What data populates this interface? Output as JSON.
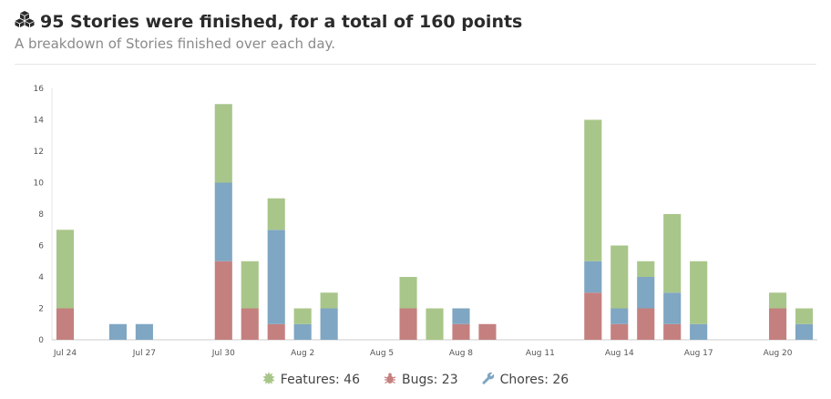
{
  "header": {
    "title": "95 Stories were finished, for a total of 160 points",
    "subtitle": "A breakdown of Stories finished over each day.",
    "icon": "boxes-icon"
  },
  "legend": {
    "features": "Features: 46",
    "bugs": "Bugs: 23",
    "chores": "Chores: 26",
    "features_icon": "feature-star-icon",
    "bugs_icon": "bug-icon",
    "chores_icon": "wrench-icon"
  },
  "colors": {
    "features": "#a9c68a",
    "bugs": "#c4807f",
    "chores": "#7fa6c2"
  },
  "chart_data": {
    "type": "bar",
    "stacked": true,
    "ylim": [
      0,
      16
    ],
    "yticks": [
      0,
      2,
      4,
      6,
      8,
      10,
      12,
      14,
      16
    ],
    "x": [
      "Jul 24",
      "Jul 25",
      "Jul 26",
      "Jul 27",
      "Jul 28",
      "Jul 29",
      "Jul 30",
      "Jul 31",
      "Aug 1",
      "Aug 2",
      "Aug 3",
      "Aug 4",
      "Aug 5",
      "Aug 6",
      "Aug 7",
      "Aug 8",
      "Aug 9",
      "Aug 10",
      "Aug 11",
      "Aug 12",
      "Aug 13",
      "Aug 14",
      "Aug 15",
      "Aug 16",
      "Aug 17",
      "Aug 18",
      "Aug 19",
      "Aug 20",
      "Aug 21"
    ],
    "xtick_labels": [
      {
        "index": 0,
        "label": "Jul 24"
      },
      {
        "index": 3,
        "label": "Jul 27"
      },
      {
        "index": 6,
        "label": "Jul 30"
      },
      {
        "index": 9,
        "label": "Aug 2"
      },
      {
        "index": 12,
        "label": "Aug 5"
      },
      {
        "index": 15,
        "label": "Aug 8"
      },
      {
        "index": 18,
        "label": "Aug 11"
      },
      {
        "index": 21,
        "label": "Aug 14"
      },
      {
        "index": 24,
        "label": "Aug 17"
      },
      {
        "index": 27,
        "label": "Aug 20"
      }
    ],
    "series": [
      {
        "name": "Bugs",
        "color": "#c4807f",
        "values": [
          2,
          0,
          0,
          0,
          0,
          0,
          5,
          2,
          1,
          0,
          0,
          0,
          0,
          2,
          0,
          1,
          1,
          0,
          0,
          0,
          3,
          1,
          2,
          1,
          0,
          0,
          0,
          2,
          0
        ]
      },
      {
        "name": "Chores",
        "color": "#7fa6c2",
        "values": [
          0,
          0,
          1,
          1,
          0,
          0,
          5,
          0,
          6,
          1,
          2,
          0,
          0,
          0,
          0,
          1,
          0,
          0,
          0,
          0,
          2,
          1,
          2,
          2,
          1,
          0,
          0,
          0,
          1
        ]
      },
      {
        "name": "Features",
        "color": "#a9c68a",
        "values": [
          5,
          0,
          0,
          0,
          0,
          0,
          5,
          3,
          2,
          1,
          1,
          0,
          0,
          2,
          2,
          0,
          0,
          0,
          0,
          0,
          9,
          4,
          1,
          5,
          4,
          0,
          0,
          1,
          1
        ]
      }
    ]
  }
}
